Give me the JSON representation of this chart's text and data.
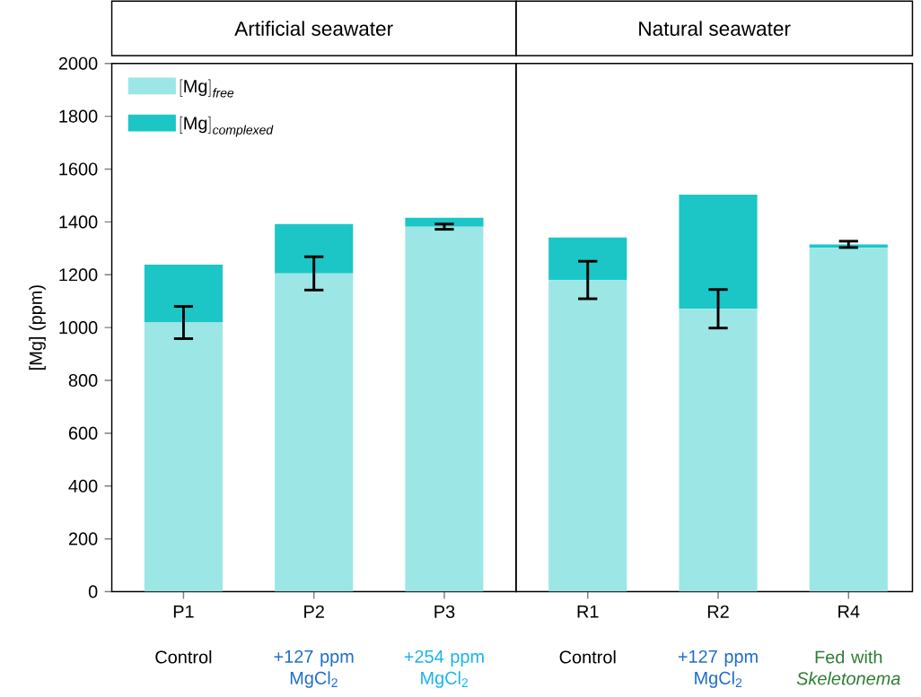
{
  "chart_data": [
    {
      "type": "bar",
      "stacked": true,
      "title": "Artificial seawater",
      "ylabel": "[Mg] (ppm)",
      "categories": [
        "P1",
        "P2",
        "P3"
      ],
      "series": [
        {
          "name": "\\mathrm{[Mg]}_{\\mathit{free}}",
          "color": "#9ce6e6",
          "values": [
            1019,
            1205,
            1382
          ],
          "errors": [
            61,
            63,
            10
          ]
        },
        {
          "name": "\\mathrm{[Mg]}_{\\mathit{complexed}}",
          "color": "#1cc6c6",
          "values": [
            219,
            187,
            34
          ],
          "errors": [
            null,
            null,
            null
          ]
        }
      ],
      "ylim": [
        0,
        2000
      ],
      "yticks": [
        0,
        200,
        400,
        600,
        800,
        1000,
        1200,
        1400,
        1600,
        1800,
        2000
      ],
      "legend": "top left",
      "grid": false,
      "annotations": [
        "Control",
        "+127 ppm MgCl$_{2}$",
        "+254 ppm MgCl$_{2}$"
      ]
    },
    {
      "type": "bar",
      "stacked": true,
      "title": "Natural seawater",
      "categories": [
        "R1",
        "R2",
        "R4"
      ],
      "series": [
        {
          "color": "#9ce6e6",
          "values": [
            1180,
            1071,
            1302
          ],
          "errors": [
            71,
            73,
            null
          ]
        },
        {
          "color": "#1cc6c6",
          "values": [
            161,
            432,
            13
          ],
          "errors": [
            null,
            null,
            12
          ]
        }
      ],
      "ylim": [
        0,
        2000
      ],
      "tick_labels": "x",
      "grid": false,
      "annotations": [
        "Control",
        "+127 ppm MgCl$_{2}$",
        "Fed with *Skeletonema*"
      ]
    }
  ]
}
